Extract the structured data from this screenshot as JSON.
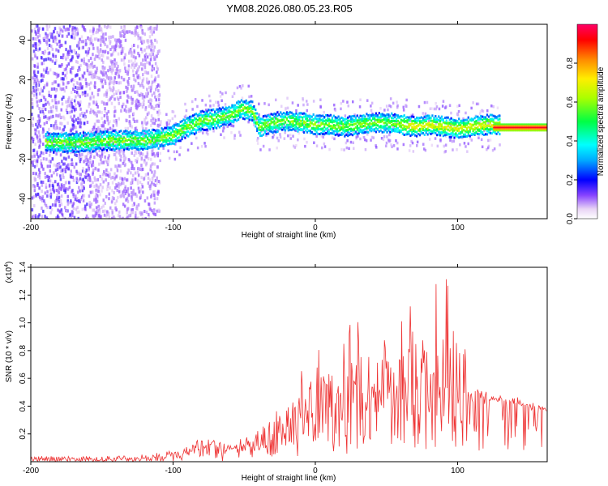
{
  "chart_data": [
    {
      "type": "heatmap",
      "title": "YM08.2026.080.05.23.R05",
      "xlabel": "Height of straight line (km)",
      "ylabel": "Frequency (Hz)",
      "xlim": [
        -200,
        163
      ],
      "ylim": [
        -50,
        48
      ],
      "x_ticks": [
        -200,
        -100,
        0,
        100
      ],
      "y_ticks": [
        40,
        20,
        0,
        -20,
        -40
      ],
      "ridge_x": [
        -200,
        -185,
        -170,
        -160,
        -150,
        -140,
        -130,
        -120,
        -110,
        -100,
        -90,
        -80,
        -70,
        -60,
        -52,
        -45,
        -40,
        -30,
        -20,
        -10,
        0,
        10,
        20,
        30,
        40,
        50,
        60,
        70,
        80,
        90,
        100,
        110,
        120,
        130,
        140,
        150,
        163
      ],
      "ridge_freq": [
        -10,
        -11,
        -11,
        -11,
        -10,
        -10,
        -10,
        -10,
        -9,
        -7,
        -3,
        0,
        1,
        3,
        6,
        5,
        -3,
        -1,
        0,
        -1,
        -2,
        -2,
        -3,
        -2,
        -1,
        -1,
        -2,
        -3,
        -2,
        -3,
        -4,
        -3,
        -2,
        -2,
        -2,
        -2,
        -2
      ],
      "colorbar": {
        "label": "Normalized spectral amplitude",
        "range": [
          0,
          1
        ],
        "ticks": [
          0.0,
          0.2,
          0.4,
          0.6,
          0.8
        ],
        "tick_labels": [
          "0.0",
          "0.2",
          "0.4",
          "0.6",
          "0.8"
        ]
      }
    },
    {
      "type": "line",
      "xlabel": "Height of straight line (km)",
      "ylabel": "SNR (10 * v/v)",
      "scale_label": "(x10",
      "scale_exponent": "4",
      "scale_close": ")",
      "xlim": [
        -200,
        163
      ],
      "ylim": [
        0,
        1.4
      ],
      "x_ticks": [
        -200,
        -100,
        0,
        100
      ],
      "y_ticks": [
        0.2,
        0.4,
        0.6,
        0.8,
        1.0,
        1.2,
        1.4
      ],
      "y_tick_labels": [
        "0.2",
        "0.4",
        "0.6",
        "0.8",
        "1.0",
        "1.2",
        "1.4"
      ],
      "series": [
        {
          "name": "SNR",
          "color": "#ee3333",
          "x": [
            -200,
            -150,
            -110,
            -90,
            -80,
            -75,
            -70,
            -60,
            -50,
            -40,
            -30,
            -20,
            -10,
            0,
            10,
            20,
            30,
            40,
            50,
            60,
            70,
            80,
            90,
            100,
            105,
            110,
            115,
            120,
            130,
            140,
            150,
            163
          ],
          "baseline": [
            0.02,
            0.02,
            0.03,
            0.06,
            0.1,
            0.13,
            0.1,
            0.08,
            0.1,
            0.13,
            0.18,
            0.22,
            0.26,
            0.28,
            0.3,
            0.32,
            0.34,
            0.35,
            0.36,
            0.37,
            0.38,
            0.38,
            0.38,
            0.38,
            0.38,
            0.4,
            0.44,
            0.44,
            0.43,
            0.42,
            0.4,
            0.38
          ],
          "peaks": [
            0,
            0,
            0.02,
            0.05,
            0.08,
            0.11,
            0.05,
            0.06,
            0.1,
            0.18,
            0.32,
            0.32,
            0.45,
            0.55,
            0.65,
            0.6,
            0.88,
            0.65,
            0.85,
            0.78,
            1.0,
            0.9,
            0.95,
            1.05,
            1.0,
            0.25,
            0.1,
            0.08,
            0.05,
            0.04,
            0.03,
            0.02
          ]
        }
      ]
    }
  ]
}
